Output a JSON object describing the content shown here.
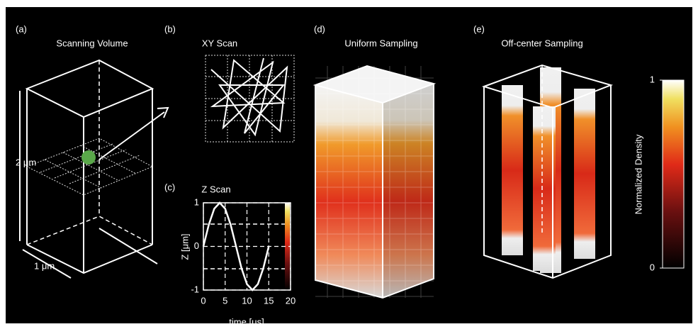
{
  "panels": {
    "a": {
      "label": "(a)",
      "title": "Scanning Volume",
      "height_label": "2 μm",
      "width_label": "1 μm"
    },
    "b": {
      "label": "(b)",
      "title": "XY Scan"
    },
    "c": {
      "label": "(c)"
    },
    "d": {
      "label": "(d)",
      "title": "Uniform Sampling"
    },
    "e": {
      "label": "(e)",
      "title": "Off-center Sampling"
    }
  },
  "chart_data": {
    "type": "line",
    "title": "Z Scan",
    "x_label": "time [μs]",
    "y_label": "Z [μm]",
    "x": [
      0,
      1.25,
      2.5,
      3.75,
      5,
      6.25,
      7.5,
      8.75,
      10,
      11.25,
      12.5,
      13.75,
      15
    ],
    "values": [
      0,
      0.5,
      0.866,
      1,
      0.866,
      0.5,
      0,
      -0.5,
      -0.866,
      -1,
      -0.866,
      -0.5,
      0
    ],
    "color": "#ffffff",
    "xlim": [
      0,
      20
    ],
    "xticks": [
      0,
      5,
      10,
      15,
      20
    ],
    "ylim": [
      -1,
      1
    ],
    "yticks": [
      -1,
      0,
      1
    ],
    "grid": true
  },
  "colorbar": {
    "label": "Normalized Density",
    "lim": [
      0,
      1
    ],
    "ticks": [
      0,
      1
    ]
  }
}
